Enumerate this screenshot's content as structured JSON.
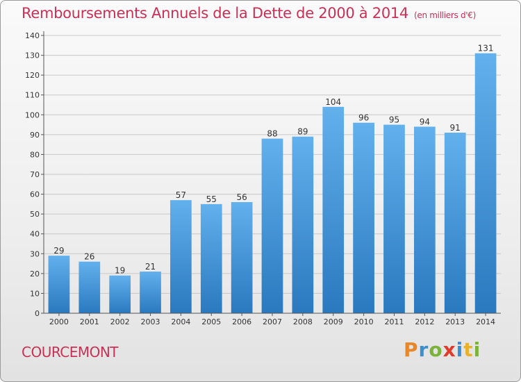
{
  "title": "Remboursements Annuels de la Dette de 2000 à 2014",
  "title_unit": "(en milliers d'€)",
  "commune": "COURCEMONT",
  "logo": {
    "letters": [
      "P",
      "r",
      "o",
      "x",
      "i",
      "t",
      "i"
    ],
    "colors": [
      "#e8862a",
      "#3a8fd0",
      "#7ab23a",
      "#e23a2a",
      "#3a8fd0",
      "#e8b12a",
      "#7ab23a"
    ]
  },
  "colors": {
    "bar_light": "#62b0ec",
    "bar_dark": "#2a79bf",
    "accent": "#c83055"
  },
  "chart_data": {
    "type": "bar",
    "title": "Remboursements Annuels de la Dette de 2000 à 2014",
    "xlabel": "",
    "ylabel": "",
    "ylim": [
      0,
      140
    ],
    "yticks": [
      0,
      10,
      20,
      30,
      40,
      50,
      60,
      70,
      80,
      90,
      100,
      110,
      120,
      130,
      140
    ],
    "grid": true,
    "categories": [
      "2000",
      "2001",
      "2002",
      "2003",
      "2004",
      "2005",
      "2006",
      "2007",
      "2008",
      "2009",
      "2010",
      "2011",
      "2012",
      "2013",
      "2014"
    ],
    "values": [
      29,
      26,
      19,
      21,
      57,
      55,
      56,
      88,
      89,
      104,
      96,
      95,
      94,
      91,
      131
    ]
  }
}
